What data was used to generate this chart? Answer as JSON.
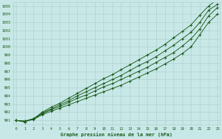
{
  "xlabel": "Graphe pression niveau de la mer (hPa)",
  "background_color": "#c8e8e8",
  "grid_color": "#b0d0d0",
  "line_color": "#1a5c1a",
  "marker_color": "#1a5c1a",
  "text_color": "#1a5c1a",
  "ylim": [
    990.5,
    1005.5
  ],
  "xlim": [
    -0.3,
    23.3
  ],
  "yticks": [
    991,
    992,
    993,
    994,
    995,
    996,
    997,
    998,
    999,
    1000,
    1001,
    1002,
    1003,
    1004,
    1005
  ],
  "xticks": [
    0,
    1,
    2,
    3,
    4,
    5,
    6,
    7,
    8,
    9,
    10,
    11,
    12,
    13,
    14,
    15,
    16,
    17,
    18,
    19,
    20,
    21,
    22,
    23
  ],
  "series": [
    [
      991.0,
      990.9,
      991.1,
      991.7,
      992.1,
      992.5,
      992.9,
      993.3,
      993.7,
      994.1,
      994.5,
      994.9,
      995.3,
      995.8,
      996.3,
      996.8,
      997.3,
      997.9,
      998.5,
      999.2,
      1000.0,
      1001.5,
      1003.0,
      1004.0
    ],
    [
      991.0,
      990.9,
      991.2,
      991.8,
      992.3,
      992.7,
      993.2,
      993.7,
      994.1,
      994.6,
      995.1,
      995.5,
      996.0,
      996.5,
      997.0,
      997.5,
      998.1,
      998.7,
      999.3,
      1000.1,
      1001.0,
      1002.2,
      1003.8,
      1004.8
    ],
    [
      991.0,
      990.9,
      991.2,
      991.9,
      992.4,
      992.9,
      993.4,
      994.0,
      994.5,
      995.0,
      995.5,
      996.0,
      996.5,
      997.1,
      997.7,
      998.2,
      998.8,
      999.5,
      1000.2,
      1001.0,
      1001.8,
      1003.0,
      1004.5,
      1005.2
    ],
    [
      991.0,
      990.8,
      991.2,
      992.0,
      992.6,
      993.1,
      993.7,
      994.3,
      994.9,
      995.5,
      996.1,
      996.6,
      997.2,
      997.8,
      998.4,
      999.0,
      999.6,
      1000.3,
      1001.1,
      1001.9,
      1002.7,
      1003.9,
      1005.0,
      1005.8
    ]
  ]
}
